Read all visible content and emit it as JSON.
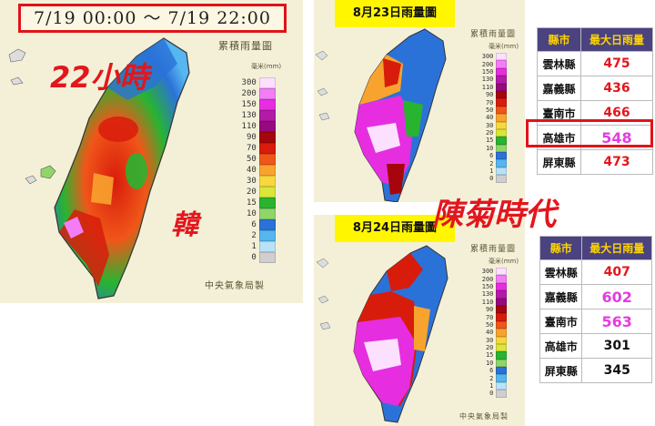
{
  "left_panel": {
    "date_range": "7/19 00:00  ～  7/19 22:00",
    "title": "累積雨量圖",
    "unit": "毫米(mm)",
    "hours_overlay": "22小時",
    "typhoon_name": "韓",
    "credit": "中央氣象局製"
  },
  "legend": {
    "levels": [
      "300",
      "200",
      "150",
      "130",
      "110",
      "90",
      "70",
      "50",
      "40",
      "30",
      "20",
      "15",
      "10",
      "6",
      "2",
      "1",
      "0"
    ],
    "colors": [
      "#fde0ff",
      "#f57cf7",
      "#e62ee0",
      "#b41aa8",
      "#97097e",
      "#a6060b",
      "#d81c0c",
      "#f05619",
      "#f8a32e",
      "#f8d83c",
      "#d9e63a",
      "#28b430",
      "#8fd66a",
      "#2b72d8",
      "#55b6f0",
      "#b8e2f8",
      "#cfcfcf"
    ]
  },
  "aug23": {
    "title": "8月23日雨量圖",
    "map_title": "累積雨量圖",
    "unit": "毫米(mm)",
    "headers": [
      "縣市",
      "最大日雨量"
    ],
    "rows": [
      {
        "county": "雲林縣",
        "value": "475",
        "color": "#e3161d"
      },
      {
        "county": "嘉義縣",
        "value": "436",
        "color": "#e3161d"
      },
      {
        "county": "臺南市",
        "value": "466",
        "color": "#e3161d"
      },
      {
        "county": "高雄市",
        "value": "548",
        "color": "#e53ce0"
      },
      {
        "county": "屏東縣",
        "value": "473",
        "color": "#e3161d"
      }
    ]
  },
  "aug24": {
    "title": "8月24日雨量圖",
    "map_title": "累積雨量圖",
    "unit": "毫米(mm)",
    "credit": "中央氣象局製",
    "headers": [
      "縣市",
      "最大日雨量"
    ],
    "rows": [
      {
        "county": "雲林縣",
        "value": "407",
        "color": "#e3161d"
      },
      {
        "county": "嘉義縣",
        "value": "602",
        "color": "#e53ce0"
      },
      {
        "county": "臺南市",
        "value": "563",
        "color": "#e53ce0"
      },
      {
        "county": "高雄市",
        "value": "301",
        "color": "#111111"
      },
      {
        "county": "屏東縣",
        "value": "345",
        "color": "#111111"
      }
    ]
  },
  "typhoon_overlay_2": "陳菊時代"
}
